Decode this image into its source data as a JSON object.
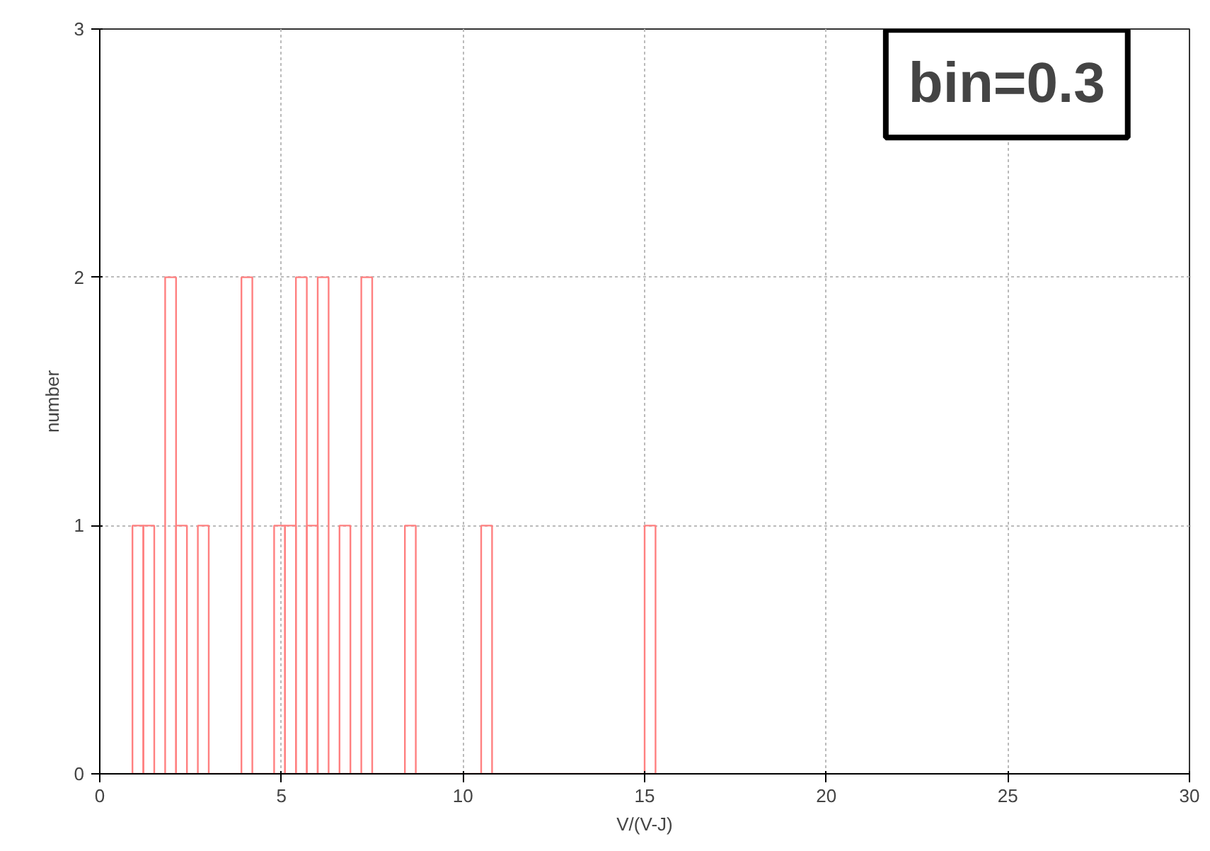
{
  "chart_data": {
    "type": "histogram",
    "xlabel": "V/(V-J)",
    "ylabel": "number",
    "annotations": [
      "bin=0.3"
    ],
    "bins": [
      0.9,
      1.2,
      1.5,
      1.8,
      2.1,
      2.4,
      2.7,
      3.0,
      3.3,
      3.6,
      3.9,
      4.2,
      4.5,
      4.8,
      5.1,
      5.4,
      5.7,
      6.0,
      6.3,
      6.6,
      6.9,
      7.2,
      7.5,
      7.8,
      8.1,
      8.4,
      8.7,
      9.0,
      9.3,
      9.6,
      9.9,
      10.2,
      10.5,
      10.8,
      11.1,
      11.4,
      11.7,
      12.0,
      12.3,
      12.6,
      12.9,
      13.2,
      13.5,
      13.8,
      14.1,
      14.4,
      14.7,
      15.0,
      15.3
    ],
    "values": [
      1,
      1,
      0,
      2,
      1,
      0,
      1,
      0,
      0,
      0,
      2,
      0,
      0,
      1,
      1,
      2,
      1,
      2,
      0,
      1,
      0,
      2,
      0,
      0,
      0,
      1,
      0,
      0,
      0,
      0,
      0,
      0,
      1,
      0,
      0,
      0,
      0,
      0,
      0,
      0,
      0,
      0,
      0,
      0,
      0,
      0,
      0,
      1
    ],
    "color": "#ff8080",
    "xlim": [
      0,
      30
    ],
    "xticks": [
      0,
      5,
      10,
      15,
      20,
      25,
      30
    ],
    "ylim": [
      0,
      3
    ],
    "yticks": [
      0,
      1,
      2,
      3
    ],
    "grid": true
  }
}
